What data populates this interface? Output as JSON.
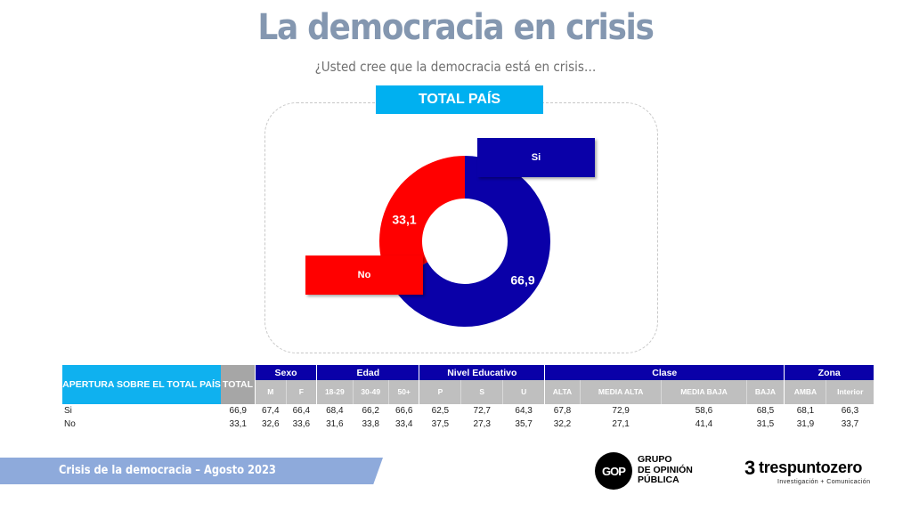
{
  "header": {
    "title": "La democracia en crisis",
    "subtitle": "¿Usted cree que la democracia está en crisis…",
    "panel_label": "TOTAL PAÍS"
  },
  "colors": {
    "si": "#0a00a8",
    "no": "#ff0000",
    "title": "#8497b0",
    "panel_header": "#00b0f0"
  },
  "chart_data": {
    "type": "pie",
    "variant": "donut",
    "title": "TOTAL PAÍS",
    "categories": [
      "Si",
      "No"
    ],
    "values": [
      66.9,
      33.1
    ],
    "value_labels": [
      "66,9",
      "33,1"
    ],
    "legend": [
      {
        "label": "Si",
        "color": "#0a00a8",
        "position": "top-right"
      },
      {
        "label": "No",
        "color": "#ff0000",
        "position": "bottom-left"
      }
    ]
  },
  "table": {
    "corner_label": "APERTURA SOBRE EL TOTAL PAÍS",
    "total_label": "TOTAL",
    "groups": [
      {
        "label": "Sexo",
        "columns": [
          "M",
          "F"
        ]
      },
      {
        "label": "Edad",
        "columns": [
          "18-29",
          "30-49",
          "50+"
        ]
      },
      {
        "label": "Nivel Educativo",
        "columns": [
          "P",
          "S",
          "U"
        ]
      },
      {
        "label": "Clase",
        "columns": [
          "ALTA",
          "MEDIA ALTA",
          "MEDIA BAJA",
          "BAJA"
        ]
      },
      {
        "label": "Zona",
        "columns": [
          "AMBA",
          "Interior"
        ]
      }
    ],
    "rows": [
      {
        "label": "Si",
        "total": "66,9",
        "values": [
          "67,4",
          "66,4",
          "68,4",
          "66,2",
          "66,6",
          "62,5",
          "72,7",
          "64,3",
          "67,8",
          "72,9",
          "58,6",
          "68,5",
          "68,1",
          "66,3"
        ]
      },
      {
        "label": "No",
        "total": "33,1",
        "values": [
          "32,6",
          "33,6",
          "31,6",
          "33,8",
          "33,4",
          "37,5",
          "27,3",
          "35,7",
          "32,2",
          "27,1",
          "41,4",
          "31,5",
          "31,9",
          "33,7"
        ]
      }
    ]
  },
  "footer": {
    "caption": "Crisis de la democracia – Agosto 2023",
    "logo_gop": {
      "mark": "GOP",
      "lines": [
        "GRUPO",
        "DE OPINIÓN",
        "PÚBLICA"
      ]
    },
    "logo_tpz": {
      "mark": "3",
      "name": "trespuntozero",
      "tagline": "Investigación + Comunicación"
    }
  }
}
